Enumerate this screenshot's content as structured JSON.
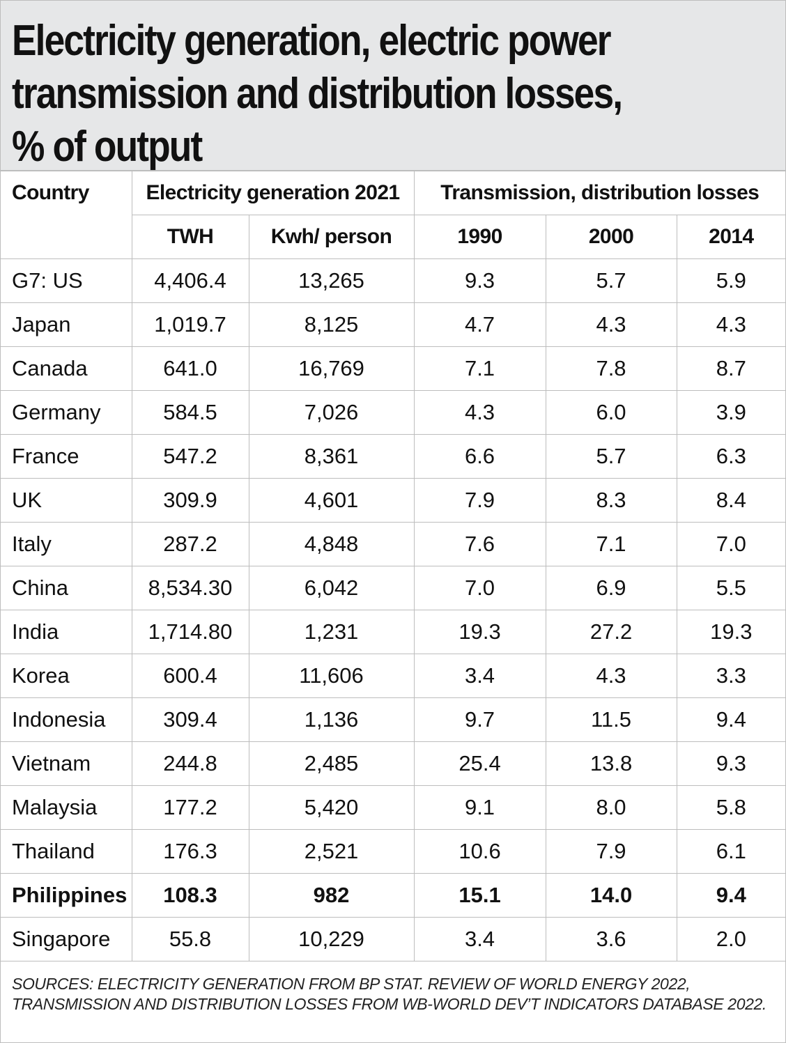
{
  "title": "Electricity generation, electric power transmission and distribution losses, % of output",
  "title_lines": [
    "Electricity generation, electric power",
    "transmission and distribution losses,",
    "% of output"
  ],
  "headers": {
    "country": "Country",
    "generation_group": "Electricity generation 2021",
    "losses_group": "Transmission, distribution losses",
    "twh": "TWH",
    "kwh": "Kwh/ person",
    "y1990": "1990",
    "y2000": "2000",
    "y2014": "2014"
  },
  "rows": [
    {
      "country": "G7: US",
      "twh": "4,406.4",
      "kwh": "13,265",
      "y1990": "9.3",
      "y2000": "5.7",
      "y2014": "5.9"
    },
    {
      "country": "Japan",
      "twh": "1,019.7",
      "kwh": "8,125",
      "y1990": "4.7",
      "y2000": "4.3",
      "y2014": "4.3"
    },
    {
      "country": "Canada",
      "twh": "641.0",
      "kwh": "16,769",
      "y1990": "7.1",
      "y2000": "7.8",
      "y2014": "8.7"
    },
    {
      "country": "Germany",
      "twh": "584.5",
      "kwh": "7,026",
      "y1990": "4.3",
      "y2000": "6.0",
      "y2014": "3.9"
    },
    {
      "country": "France",
      "twh": "547.2",
      "kwh": "8,361",
      "y1990": "6.6",
      "y2000": "5.7",
      "y2014": "6.3"
    },
    {
      "country": "UK",
      "twh": "309.9",
      "kwh": "4,601",
      "y1990": "7.9",
      "y2000": "8.3",
      "y2014": "8.4"
    },
    {
      "country": "Italy",
      "twh": "287.2",
      "kwh": "4,848",
      "y1990": "7.6",
      "y2000": "7.1",
      "y2014": "7.0"
    },
    {
      "country": "China",
      "twh": "8,534.30",
      "kwh": "6,042",
      "y1990": "7.0",
      "y2000": "6.9",
      "y2014": "5.5"
    },
    {
      "country": "India",
      "twh": "1,714.80",
      "kwh": "1,231",
      "y1990": "19.3",
      "y2000": "27.2",
      "y2014": "19.3"
    },
    {
      "country": "Korea",
      "twh": "600.4",
      "kwh": "11,606",
      "y1990": "3.4",
      "y2000": "4.3",
      "y2014": "3.3"
    },
    {
      "country": "Indonesia",
      "twh": "309.4",
      "kwh": "1,136",
      "y1990": "9.7",
      "y2000": "11.5",
      "y2014": "9.4"
    },
    {
      "country": "Vietnam",
      "twh": "244.8",
      "kwh": "2,485",
      "y1990": "25.4",
      "y2000": "13.8",
      "y2014": "9.3"
    },
    {
      "country": "Malaysia",
      "twh": "177.2",
      "kwh": "5,420",
      "y1990": "9.1",
      "y2000": "8.0",
      "y2014": "5.8"
    },
    {
      "country": "Thailand",
      "twh": "176.3",
      "kwh": "2,521",
      "y1990": "10.6",
      "y2000": "7.9",
      "y2014": "6.1"
    },
    {
      "country": "Philippines",
      "twh": "108.3",
      "kwh": "982",
      "y1990": "15.1",
      "y2000": "14.0",
      "y2014": "9.4",
      "highlight": true
    },
    {
      "country": "Singapore",
      "twh": "55.8",
      "kwh": "10,229",
      "y1990": "3.4",
      "y2000": "3.6",
      "y2014": "2.0"
    }
  ],
  "sources": "SOURCES: ELECTRICITY GENERATION FROM BP STAT. REVIEW OF WORLD ENERGY 2022, TRANSMISSION AND DISTRIBUTION LOSSES FROM WB-WORLD DEV’T INDICATORS DATABASE 2022.",
  "colors": {
    "title_background": "#e6e7e8",
    "grid_line": "#bdbdbd",
    "text": "#111111"
  },
  "chart_data": {
    "type": "table",
    "title": "Electricity generation, electric power transmission and distribution losses, % of output",
    "columns": [
      "Country",
      "Electricity generation 2021 TWH",
      "Electricity generation 2021 Kwh/ person",
      "Transmission, distribution losses 1990",
      "Transmission, distribution losses 2000",
      "Transmission, distribution losses 2014"
    ],
    "units": {
      "twh": "TWh",
      "kwh": "kWh per person",
      "losses": "% of output"
    },
    "values": [
      [
        "G7: US",
        4406.4,
        13265,
        9.3,
        5.7,
        5.9
      ],
      [
        "Japan",
        1019.7,
        8125,
        4.7,
        4.3,
        4.3
      ],
      [
        "Canada",
        641.0,
        16769,
        7.1,
        7.8,
        8.7
      ],
      [
        "Germany",
        584.5,
        7026,
        4.3,
        6.0,
        3.9
      ],
      [
        "France",
        547.2,
        8361,
        6.6,
        5.7,
        6.3
      ],
      [
        "UK",
        309.9,
        4601,
        7.9,
        8.3,
        8.4
      ],
      [
        "Italy",
        287.2,
        4848,
        7.6,
        7.1,
        7.0
      ],
      [
        "China",
        8534.3,
        6042,
        7.0,
        6.9,
        5.5
      ],
      [
        "India",
        1714.8,
        1231,
        19.3,
        27.2,
        19.3
      ],
      [
        "Korea",
        600.4,
        11606,
        3.4,
        4.3,
        3.3
      ],
      [
        "Indonesia",
        309.4,
        1136,
        9.7,
        11.5,
        9.4
      ],
      [
        "Vietnam",
        244.8,
        2485,
        25.4,
        13.8,
        9.3
      ],
      [
        "Malaysia",
        177.2,
        5420,
        9.1,
        8.0,
        5.8
      ],
      [
        "Thailand",
        176.3,
        2521,
        10.6,
        7.9,
        6.1
      ],
      [
        "Philippines",
        108.3,
        982,
        15.1,
        14.0,
        9.4
      ],
      [
        "Singapore",
        55.8,
        10229,
        3.4,
        3.6,
        2.0
      ]
    ],
    "highlighted_row": "Philippines"
  }
}
